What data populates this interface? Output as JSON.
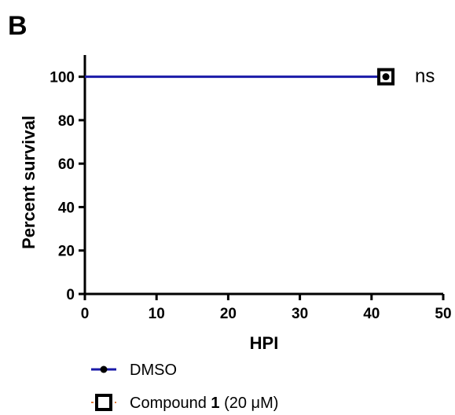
{
  "panel_label": "B",
  "colors": {
    "axis": "#000000",
    "dmso": "#1a1aa8",
    "compound_dash": "#e07b39",
    "marker": "#000000"
  },
  "chart_data": {
    "type": "line",
    "title": "",
    "xlabel": "HPI",
    "ylabel": "Percent survival",
    "xlim": [
      0,
      50
    ],
    "ylim": [
      0,
      110
    ],
    "x_ticks": [
      0,
      10,
      20,
      30,
      40,
      50
    ],
    "y_ticks": [
      0,
      20,
      40,
      60,
      80,
      100
    ],
    "grid": false,
    "legend_position": "bottom-left",
    "series": [
      {
        "name": "DMSO",
        "x": [
          0,
          42
        ],
        "y": [
          100,
          100
        ],
        "color": "#1a1aa8",
        "line_style": "solid",
        "marker": "filled-circle"
      },
      {
        "name_parts": [
          "Compound ",
          "1",
          " (20 μM)"
        ],
        "x": [
          0,
          42
        ],
        "y": [
          100,
          100
        ],
        "color": "#e07b39",
        "line_style": "dashed",
        "marker": "open-square"
      }
    ],
    "annotations": [
      {
        "text": "ns",
        "x": 42,
        "y": 100
      }
    ]
  }
}
